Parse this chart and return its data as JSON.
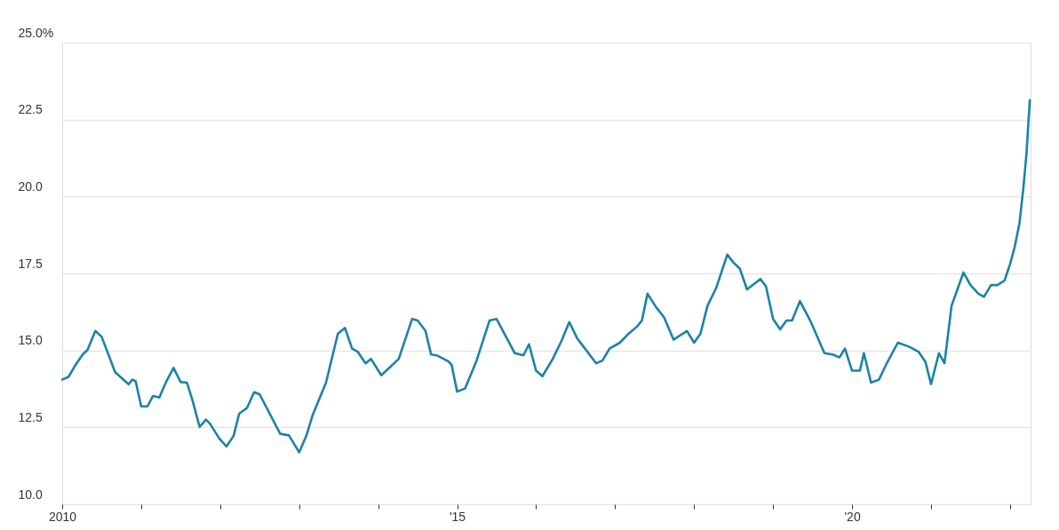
{
  "chart_data": {
    "type": "line",
    "x": [
      2010.0,
      2010.08,
      2010.17,
      2010.26,
      2010.32,
      2010.42,
      2010.5,
      2010.67,
      2010.84,
      2010.89,
      2010.93,
      2011.0,
      2011.08,
      2011.15,
      2011.23,
      2011.32,
      2011.41,
      2011.5,
      2011.58,
      2011.65,
      2011.74,
      2011.82,
      2011.87,
      2011.99,
      2012.08,
      2012.17,
      2012.24,
      2012.34,
      2012.43,
      2012.5,
      2012.76,
      2012.87,
      2013.0,
      2013.09,
      2013.17,
      2013.34,
      2013.49,
      2013.58,
      2013.67,
      2013.74,
      2013.84,
      2013.91,
      2014.04,
      2014.26,
      2014.43,
      2014.5,
      2014.6,
      2014.67,
      2014.74,
      2014.89,
      2014.93,
      2015.0,
      2015.1,
      2015.24,
      2015.41,
      2015.5,
      2015.73,
      2015.84,
      2015.91,
      2016.0,
      2016.08,
      2016.21,
      2016.32,
      2016.42,
      2016.52,
      2016.76,
      2016.84,
      2016.93,
      2017.06,
      2017.17,
      2017.28,
      2017.34,
      2017.41,
      2017.52,
      2017.62,
      2017.74,
      2017.91,
      2018.0,
      2018.08,
      2018.17,
      2018.28,
      2018.42,
      2018.5,
      2018.58,
      2018.67,
      2018.84,
      2018.91,
      2019.0,
      2019.09,
      2019.17,
      2019.24,
      2019.34,
      2019.47,
      2019.65,
      2019.76,
      2019.84,
      2019.91,
      2020.0,
      2020.1,
      2020.15,
      2020.24,
      2020.34,
      2020.43,
      2020.58,
      2020.73,
      2020.84,
      2020.93,
      2021.0,
      2021.1,
      2021.17,
      2021.26,
      2021.41,
      2021.5,
      2021.6,
      2021.67,
      2021.76,
      2021.84,
      2021.93,
      2022.0,
      2022.06,
      2022.12,
      2022.17,
      2022.21,
      2022.25
    ],
    "series": [
      {
        "color": "#1b83a6",
        "values": [
          14.05,
          14.14,
          14.53,
          14.87,
          15.01,
          15.63,
          15.44,
          14.29,
          13.9,
          14.05,
          14.0,
          13.18,
          13.18,
          13.52,
          13.47,
          14.0,
          14.43,
          13.97,
          13.95,
          13.37,
          12.51,
          12.75,
          12.62,
          12.13,
          11.88,
          12.22,
          12.94,
          13.13,
          13.64,
          13.57,
          12.29,
          12.24,
          11.69,
          12.22,
          12.89,
          13.95,
          15.54,
          15.73,
          15.06,
          14.96,
          14.58,
          14.72,
          14.19,
          14.72,
          16.02,
          15.97,
          15.63,
          14.87,
          14.84,
          14.64,
          14.53,
          13.66,
          13.76,
          14.62,
          15.97,
          16.02,
          14.91,
          14.84,
          15.2,
          14.34,
          14.16,
          14.72,
          15.3,
          15.92,
          15.39,
          14.58,
          14.67,
          15.06,
          15.25,
          15.54,
          15.78,
          15.97,
          16.84,
          16.4,
          16.07,
          15.35,
          15.63,
          15.25,
          15.54,
          16.45,
          17.03,
          18.11,
          17.85,
          17.65,
          16.98,
          17.32,
          17.08,
          16.02,
          15.68,
          15.97,
          15.97,
          16.6,
          15.97,
          14.91,
          14.86,
          14.77,
          15.06,
          14.34,
          14.34,
          14.91,
          13.95,
          14.05,
          14.53,
          15.25,
          15.11,
          14.96,
          14.62,
          13.9,
          14.91,
          14.58,
          16.45,
          17.53,
          17.12,
          16.84,
          16.74,
          17.12,
          17.12,
          17.27,
          17.8,
          18.37,
          19.14,
          20.3,
          21.45,
          23.13
        ]
      }
    ],
    "xlim": [
      2010,
      2022.26
    ],
    "xticks": [
      {
        "value": 2010,
        "label": "2010"
      },
      {
        "value": 2011,
        "label": null
      },
      {
        "value": 2012,
        "label": null
      },
      {
        "value": 2013,
        "label": null
      },
      {
        "value": 2014,
        "label": null
      },
      {
        "value": 2015,
        "label": "'15"
      },
      {
        "value": 2016,
        "label": null
      },
      {
        "value": 2017,
        "label": null
      },
      {
        "value": 2018,
        "label": null
      },
      {
        "value": 2019,
        "label": null
      },
      {
        "value": 2020,
        "label": "'20"
      },
      {
        "value": 2021,
        "label": null
      },
      {
        "value": 2022,
        "label": null
      }
    ],
    "ylim": [
      10,
      25
    ],
    "yticks": [
      {
        "value": 10,
        "label": "10.0"
      },
      12.5,
      {
        "value": 15,
        "label": "15.0"
      },
      17.5,
      {
        "value": 20,
        "label": "20.0"
      },
      22.5,
      {
        "value": 25,
        "label": "25.0%"
      }
    ],
    "grid": "y",
    "marker": "none",
    "line_style": "solid"
  }
}
